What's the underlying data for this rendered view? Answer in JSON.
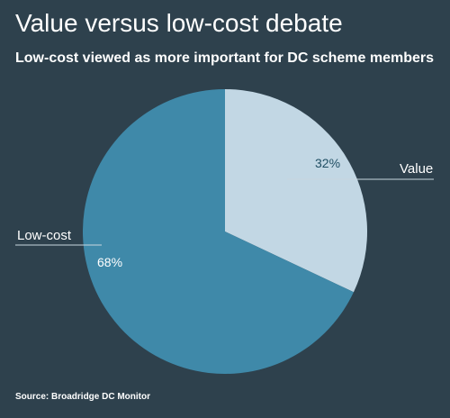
{
  "title": "Value versus low-cost debate",
  "subtitle": "Low-cost viewed as more important for DC scheme members",
  "source": "Source: Broadridge DC Monitor",
  "colors": {
    "background": "#2e414d",
    "value": "#c2d7e4",
    "low_cost": "#3f89a9",
    "text": "#ffffff",
    "leader_line": "#c8d6de"
  },
  "chart_data": {
    "type": "pie",
    "title": "Value versus low-cost debate",
    "subtitle": "Low-cost viewed as more important for DC scheme members",
    "slices": [
      {
        "label": "Value",
        "value": 32,
        "value_label": "32%",
        "color": "#c2d7e4",
        "label_color": "#1f4e63"
      },
      {
        "label": "Low-cost",
        "value": 68,
        "value_label": "68%",
        "color": "#3f89a9",
        "label_color": "#ffffff"
      }
    ],
    "start_angle": "12 o'clock",
    "direction": "clockwise"
  }
}
